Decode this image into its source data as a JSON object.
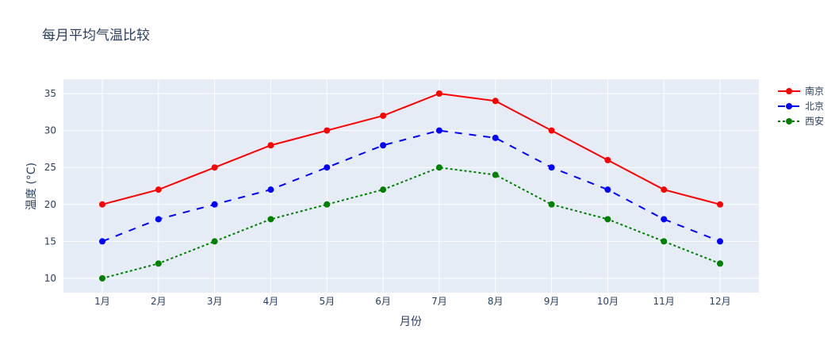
{
  "chart_data": {
    "type": "line",
    "title": "每月平均气温比较",
    "xlabel": "月份",
    "ylabel": "温度 (°C)",
    "categories": [
      "1月",
      "2月",
      "3月",
      "4月",
      "5月",
      "6月",
      "7月",
      "8月",
      "9月",
      "10月",
      "11月",
      "12月"
    ],
    "yticks": [
      10,
      15,
      20,
      25,
      30,
      35
    ],
    "ylim": [
      8.07,
      36.93
    ],
    "grid": true,
    "legend_position": "top-right",
    "series": [
      {
        "name": "南京",
        "color": "#ff0000",
        "dash": "solid",
        "values": [
          20,
          22,
          25,
          28,
          30,
          32,
          35,
          34,
          30,
          26,
          22,
          20
        ]
      },
      {
        "name": "北京",
        "color": "#0000ff",
        "dash": "dash",
        "values": [
          15,
          18,
          20,
          22,
          25,
          28,
          30,
          29,
          25,
          22,
          18,
          15
        ]
      },
      {
        "name": "西安",
        "color": "#008000",
        "dash": "dot",
        "values": [
          10,
          12,
          15,
          18,
          20,
          22,
          25,
          24,
          20,
          18,
          15,
          12
        ]
      }
    ]
  }
}
